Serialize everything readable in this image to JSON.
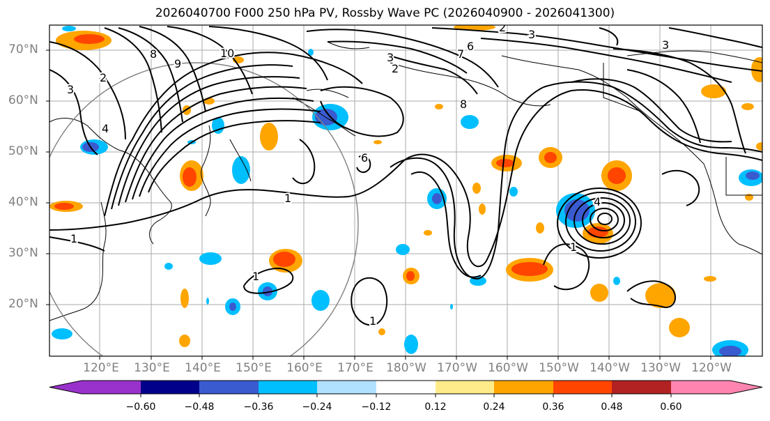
{
  "title": "2026040700 F000 250 hPa PV, Rossby Wave PC (2026040900 - 2026041300)",
  "lat_labels": [
    "70°N",
    "60°N",
    "50°N",
    "40°N",
    "30°N",
    "20°N"
  ],
  "lon_labels": [
    "120°E",
    "130°E",
    "140°E",
    "150°E",
    "160°E",
    "170°E",
    "180°W",
    "170°W",
    "160°W",
    "150°W",
    "140°W",
    "130°W",
    "120°W"
  ],
  "contour_labels": [
    "1",
    "1",
    "1",
    "1",
    "1",
    "2",
    "2",
    "2",
    "3",
    "3",
    "3",
    "3",
    "4",
    "4",
    "6",
    "6",
    "7",
    "8",
    "8",
    "9",
    "10"
  ],
  "colorbar": {
    "tick_labels": [
      "−0.60",
      "−0.48",
      "−0.36",
      "−0.24",
      "−0.12",
      "0.12",
      "0.24",
      "0.36",
      "0.48",
      "0.60"
    ],
    "colors": [
      "#9932cc",
      "#9b30d0",
      "#00008b",
      "#3a5bd0",
      "#00bfff",
      "#b0e2ff",
      "#ffffff",
      "#ffeb8a",
      "#ffa500",
      "#ff4500",
      "#b22222",
      "#ff85b0"
    ]
  }
}
